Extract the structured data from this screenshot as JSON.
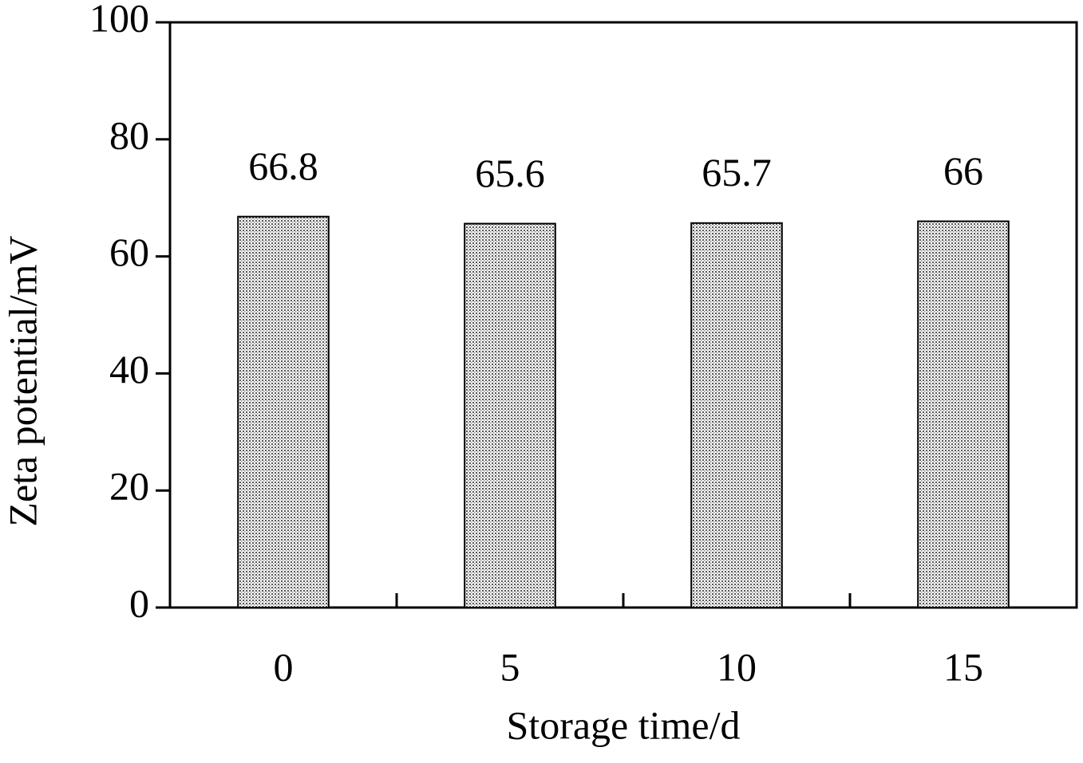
{
  "chart_data": {
    "type": "bar",
    "x_label": "Storage time/d",
    "y_label": "Zeta potential/mV",
    "categories": [
      "0",
      "5",
      "10",
      "15"
    ],
    "values": [
      66.8,
      65.6,
      65.7,
      66
    ],
    "ylim": [
      0,
      100
    ],
    "yticks": [
      0,
      20,
      40,
      60,
      80,
      100
    ]
  }
}
